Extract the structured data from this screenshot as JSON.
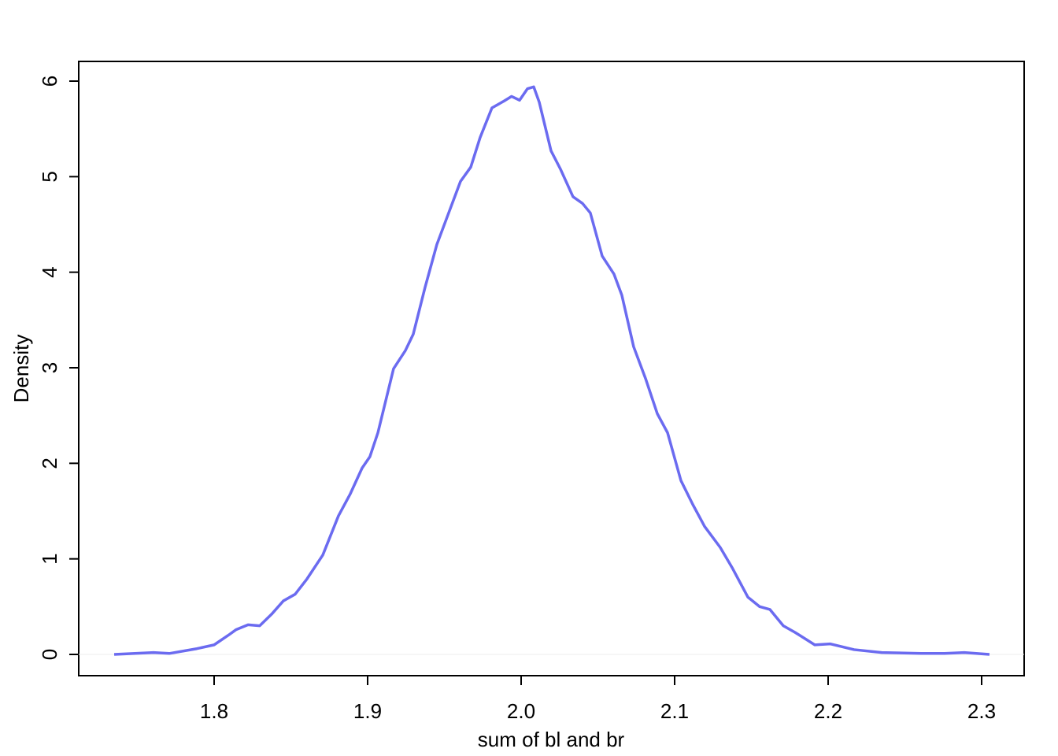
{
  "chart_data": {
    "type": "line",
    "xlabel": "sum of bl and br",
    "ylabel": "Density",
    "x": [
      1.7349,
      1.7605,
      1.7708,
      1.7887,
      1.8,
      1.8092,
      1.8144,
      1.8221,
      1.8297,
      1.8374,
      1.8451,
      1.8528,
      1.8605,
      1.8708,
      1.881,
      1.8887,
      1.8964,
      1.9015,
      1.9067,
      1.9169,
      1.9246,
      1.9297,
      1.9374,
      1.9451,
      1.9528,
      1.9605,
      1.9672,
      1.9733,
      1.981,
      1.9887,
      1.9938,
      1.999,
      2.0041,
      2.0082,
      2.0118,
      2.0195,
      2.0256,
      2.0338,
      2.04,
      2.0451,
      2.0528,
      2.0605,
      2.0656,
      2.0733,
      2.081,
      2.0887,
      2.0954,
      2.1041,
      2.1118,
      2.1195,
      2.1297,
      2.1374,
      2.1477,
      2.1554,
      2.1621,
      2.1708,
      2.1785,
      2.1913,
      2.2015,
      2.2169,
      2.2349,
      2.2605,
      2.2759,
      2.2887,
      2.3051
    ],
    "series": [
      {
        "name": "Density",
        "color": "#6b6bf0",
        "values": [
          0,
          0.02,
          0.01,
          0.06,
          0.1,
          0.2,
          0.26,
          0.31,
          0.3,
          0.42,
          0.56,
          0.63,
          0.79,
          1.04,
          1.45,
          1.68,
          1.95,
          2.07,
          2.32,
          2.99,
          3.18,
          3.35,
          3.84,
          4.29,
          4.62,
          4.95,
          5.1,
          5.41,
          5.72,
          5.79,
          5.84,
          5.8,
          5.92,
          5.94,
          5.78,
          5.27,
          5.08,
          4.79,
          4.72,
          4.62,
          4.17,
          3.98,
          3.76,
          3.22,
          2.89,
          2.52,
          2.32,
          1.82,
          1.57,
          1.34,
          1.12,
          0.91,
          0.6,
          0.5,
          0.47,
          0.3,
          0.23,
          0.1,
          0.11,
          0.05,
          0.02,
          0.01,
          0.01,
          0.02,
          0
        ]
      }
    ],
    "xlim": [
      1.7118,
      2.3277
    ],
    "ylim": [
      -0.2225,
      6.206
    ],
    "xticks": [
      1.8,
      1.9,
      {
        "value": 2,
        "label": "2.0"
      },
      2.1,
      2.2,
      2.3
    ],
    "yticks": [
      0,
      1,
      2,
      3,
      4,
      5,
      6
    ]
  }
}
